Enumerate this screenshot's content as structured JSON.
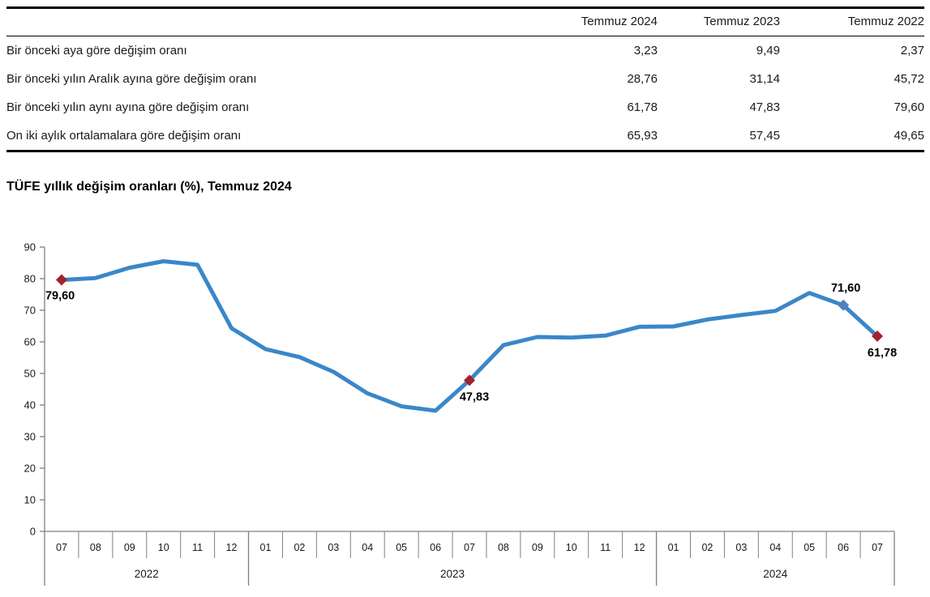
{
  "table": {
    "headers": [
      "Temmuz 2024",
      "Temmuz 2023",
      "Temmuz 2022"
    ],
    "rows": [
      {
        "label": "Bir önceki aya göre değişim oranı",
        "values": [
          "3,23",
          "9,49",
          "2,37"
        ]
      },
      {
        "label": "Bir önceki yılın Aralık ayına göre değişim oranı",
        "values": [
          "28,76",
          "31,14",
          "45,72"
        ]
      },
      {
        "label": "Bir önceki yılın aynı ayına göre değişim oranı",
        "values": [
          "61,78",
          "47,83",
          "79,60"
        ]
      },
      {
        "label": "On iki aylık ortalamalara göre değişim oranı",
        "values": [
          "65,93",
          "57,45",
          "49,65"
        ]
      }
    ]
  },
  "chart": {
    "title": "TÜFE yıllık değişim oranları (%), Temmuz 2024"
  },
  "chart_data": {
    "type": "line",
    "title": "TÜFE yıllık değişim oranları (%), Temmuz 2024",
    "ylabel": "",
    "xlabel": "",
    "ylim": [
      0,
      90
    ],
    "ytick_step": 10,
    "grid": false,
    "legend": "none",
    "line_color": "#3a87c8",
    "marker_colors": {
      "red": "#a3212d",
      "blue": "#4f81bd"
    },
    "axis_color": "#808080",
    "year_groups": [
      {
        "year": "2022",
        "months": [
          "07",
          "08",
          "09",
          "10",
          "11",
          "12"
        ]
      },
      {
        "year": "2023",
        "months": [
          "01",
          "02",
          "03",
          "04",
          "05",
          "06",
          "07",
          "08",
          "09",
          "10",
          "11",
          "12"
        ]
      },
      {
        "year": "2024",
        "months": [
          "01",
          "02",
          "03",
          "04",
          "05",
          "06",
          "07"
        ]
      }
    ],
    "values": [
      79.6,
      80.21,
      83.45,
      85.51,
      84.39,
      64.27,
      57.68,
      55.18,
      50.51,
      43.68,
      39.59,
      38.21,
      47.83,
      58.94,
      61.53,
      61.36,
      61.98,
      64.77,
      64.86,
      67.07,
      68.5,
      69.8,
      75.45,
      71.6,
      61.78
    ],
    "annotations": [
      {
        "index": 0,
        "label": "79,60",
        "marker": "red",
        "position": "below-left"
      },
      {
        "index": 12,
        "label": "47,83",
        "marker": "red",
        "position": "below"
      },
      {
        "index": 23,
        "label": "71,60",
        "marker": "blue",
        "position": "above"
      },
      {
        "index": 24,
        "label": "61,78",
        "marker": "red",
        "position": "below"
      }
    ]
  }
}
